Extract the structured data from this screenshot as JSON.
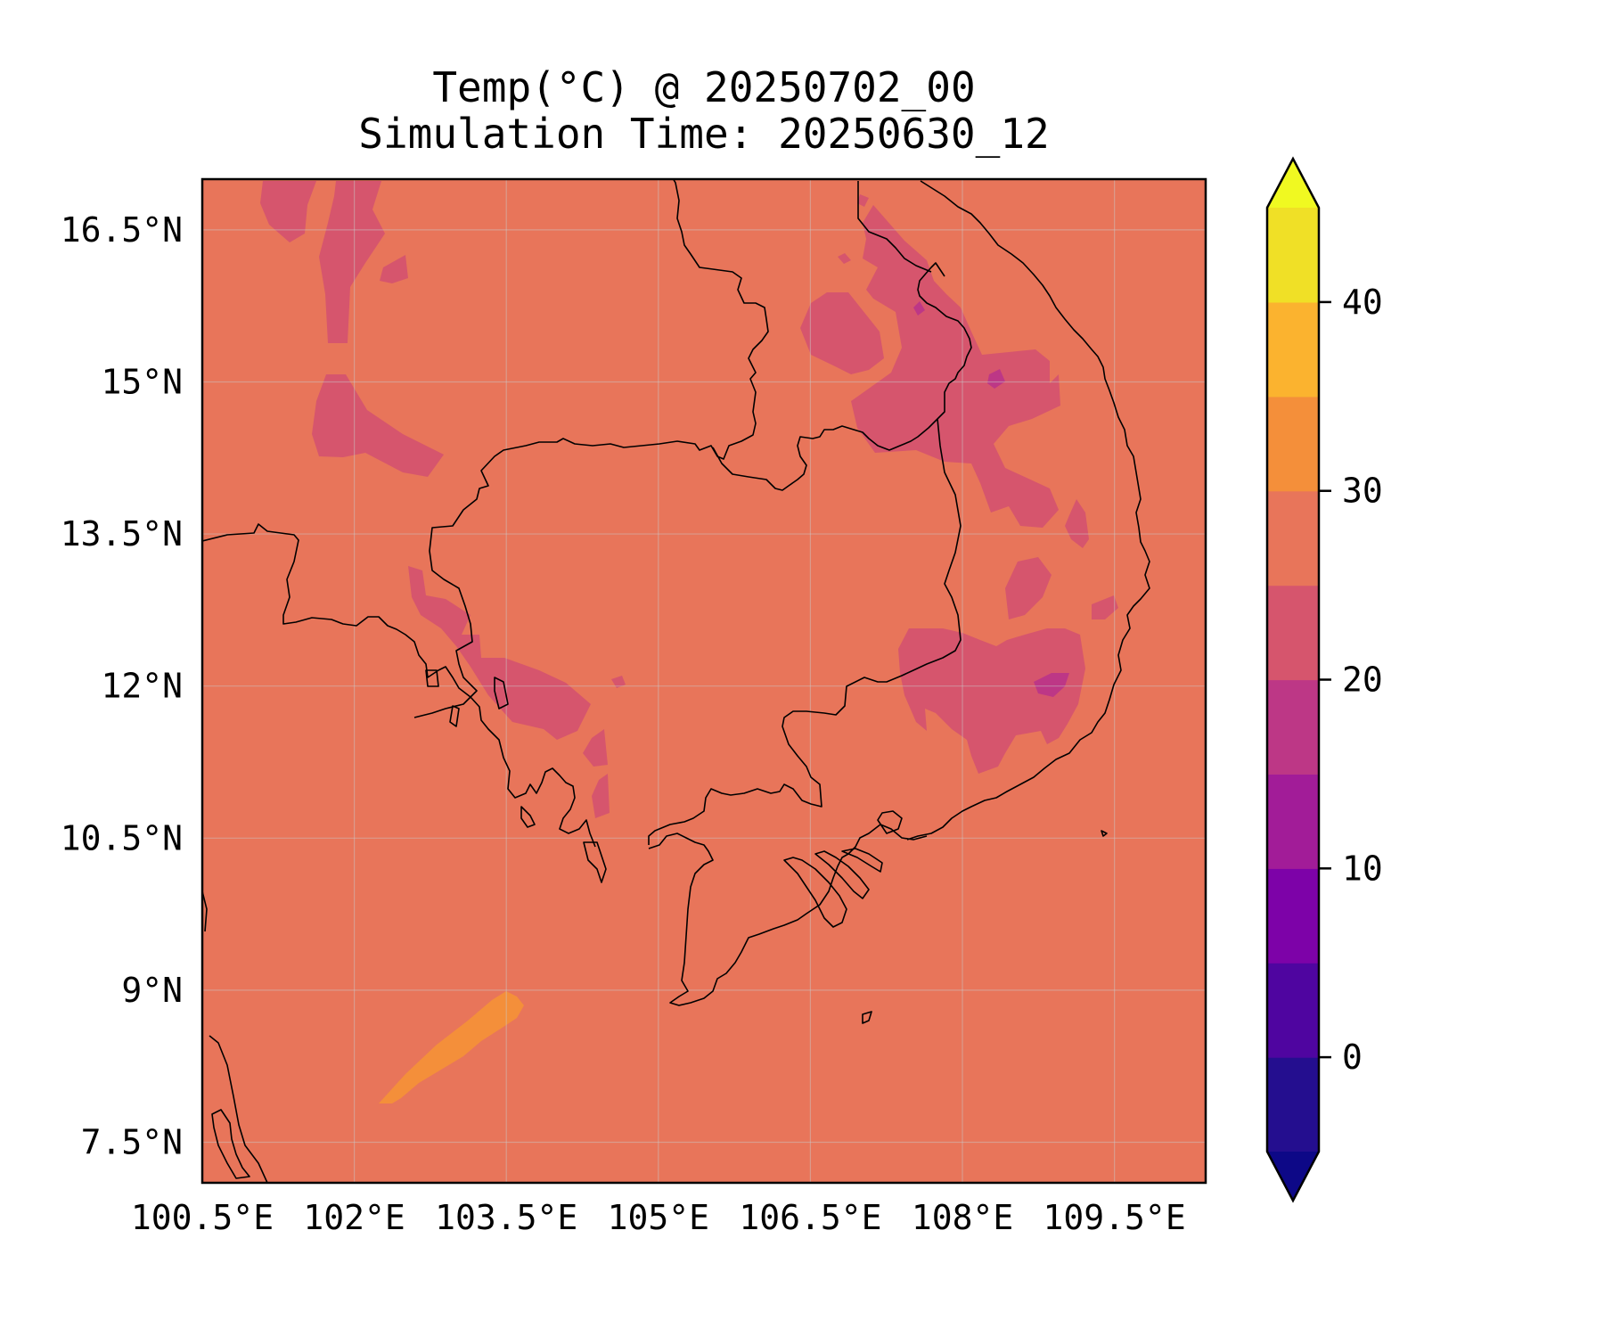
{
  "title": "Temp(°C) @ 20250702_00",
  "subtitle": "Simulation Time: 20250630_12",
  "map": {
    "lon_range": [
      100.5,
      110.4
    ],
    "lat_range": [
      7.1,
      17.0
    ],
    "lon_ticks": [
      100.5,
      102,
      103.5,
      105,
      106.5,
      108,
      109.5
    ],
    "lon_tick_labels": [
      "100.5°E",
      "102°E",
      "103.5°E",
      "105°E",
      "106.5°E",
      "108°E",
      "109.5°E"
    ],
    "lat_ticks": [
      7.5,
      9,
      10.5,
      12,
      13.5,
      15,
      16.5
    ],
    "lat_tick_labels": [
      "7.5°N",
      "9°N",
      "10.5°N",
      "12°N",
      "13.5°N",
      "15°N",
      "16.5°N"
    ],
    "background_level_color": "#e8755a",
    "coastline_color": "#000000",
    "gridlines": true
  },
  "colorbar": {
    "colormap": "plasma",
    "extend": "both",
    "bounds": [
      -5,
      0,
      5,
      10,
      15,
      20,
      25,
      30,
      35,
      40,
      45
    ],
    "colors": [
      "#240e8f",
      "#4f05a0",
      "#7d02a8",
      "#a21c98",
      "#bd3786",
      "#d6556d",
      "#e8755a",
      "#f48f3a",
      "#fbb32f",
      "#f0e026"
    ],
    "under_color": "#0d0887",
    "over_color": "#f0f921",
    "ticks": [
      0,
      10,
      20,
      30,
      40
    ],
    "tick_labels": [
      "0",
      "10",
      "20",
      "30",
      "40"
    ]
  }
}
